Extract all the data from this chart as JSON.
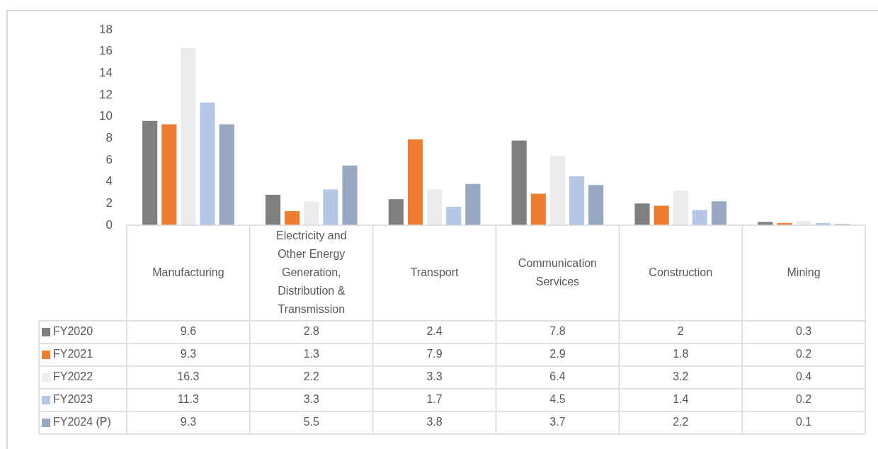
{
  "chart_data": {
    "type": "bar",
    "categories": [
      "Manufacturing",
      "Electricity and Other Energy Generation, Distribution & Transmission",
      "Transport",
      "Communication Services",
      "Construction",
      "Mining"
    ],
    "series": [
      {
        "name": "FY2020",
        "color": "#7f7f7f",
        "values": [
          9.6,
          2.8,
          2.4,
          7.8,
          2,
          0.3
        ]
      },
      {
        "name": "FY2021",
        "color": "#ed7d31",
        "values": [
          9.3,
          1.3,
          7.9,
          2.9,
          1.8,
          0.2
        ]
      },
      {
        "name": "FY2022",
        "color": "#ececec",
        "values": [
          16.3,
          2.2,
          3.3,
          6.4,
          3.2,
          0.4
        ]
      },
      {
        "name": "FY2023",
        "color": "#b4c7e7",
        "values": [
          11.3,
          3.3,
          1.7,
          4.5,
          1.4,
          0.2
        ]
      },
      {
        "name": "FY2024 (P)",
        "color": "#97a8c0",
        "values": [
          9.3,
          5.5,
          3.8,
          3.7,
          2.2,
          0.1
        ]
      }
    ],
    "ylim": [
      0,
      18
    ],
    "yticks": [
      0,
      2,
      4,
      6,
      8,
      10,
      12,
      14,
      16,
      18
    ],
    "legend": "bottom",
    "data_labels": true
  }
}
